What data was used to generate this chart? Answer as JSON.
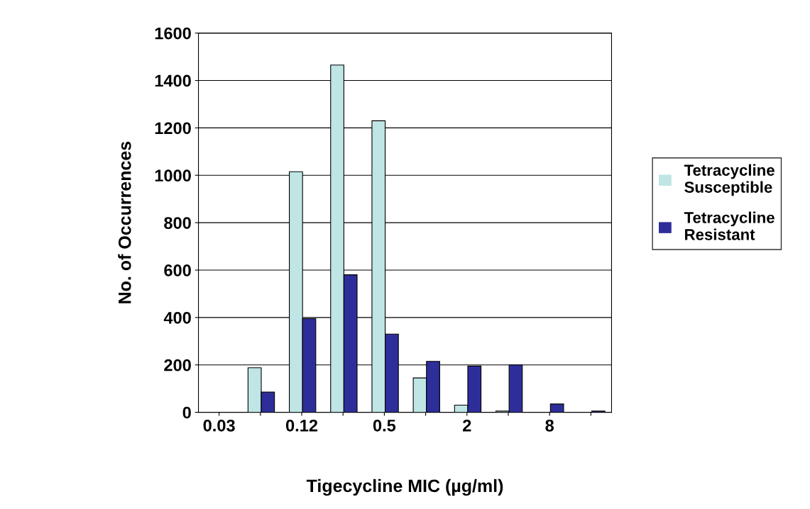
{
  "chart_data": {
    "type": "bar",
    "xlabel": "Tigecycline MIC (µg/ml)",
    "ylabel": "No. of Occurrences",
    "categories": [
      "0.03",
      null,
      "0.12",
      null,
      "0.5",
      null,
      "2",
      null,
      "8",
      null
    ],
    "series": [
      {
        "name": "Tetracycline\nSusceptible",
        "color": "#bfe5e5",
        "values": [
          null,
          188,
          1015,
          1465,
          1230,
          145,
          30,
          5,
          null,
          0
        ]
      },
      {
        "name": "Tetracycline\nResistant",
        "color": "#2e2e9a",
        "values": [
          null,
          85,
          395,
          580,
          330,
          215,
          195,
          200,
          35,
          5
        ]
      }
    ],
    "ylim": [
      0,
      1600
    ],
    "yticks": [
      0,
      200,
      400,
      600,
      800,
      1000,
      1200,
      1400,
      1600
    ],
    "grid": "y",
    "legend": "right"
  }
}
